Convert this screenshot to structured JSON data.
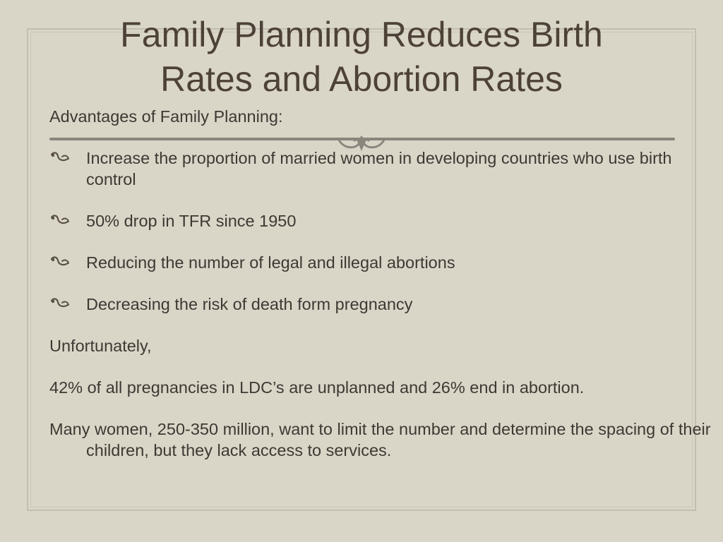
{
  "slide": {
    "title_line1": "Family Planning Reduces Birth",
    "title_line2": "Rates and Abortion Rates",
    "subtitle": "Advantages of Family Planning:",
    "bullets": [
      {
        "text": "Increase the proportion of married women in developing countries who use birth control"
      },
      {
        "text": "50% drop in TFR since 1950"
      },
      {
        "text": "Reducing the number of legal and illegal abortions"
      },
      {
        "text": "Decreasing the risk of death form pregnancy"
      }
    ],
    "unfortunately": "Unfortunately,",
    "stat_line": "42% of all pregnancies in LDC’s are unplanned and 26% end in abortion.",
    "access_line": "Many women, 250-350 million, want to limit the number and determine the spacing of their children, but they lack access to services."
  },
  "colors": {
    "background": "#d9d6c8",
    "title": "#4e4238",
    "body_text": "#3f3833",
    "divider": "#8a857d"
  },
  "icons": {
    "bullet": "fleuron-bullet-icon",
    "ornament": "scroll-ornament-icon"
  }
}
